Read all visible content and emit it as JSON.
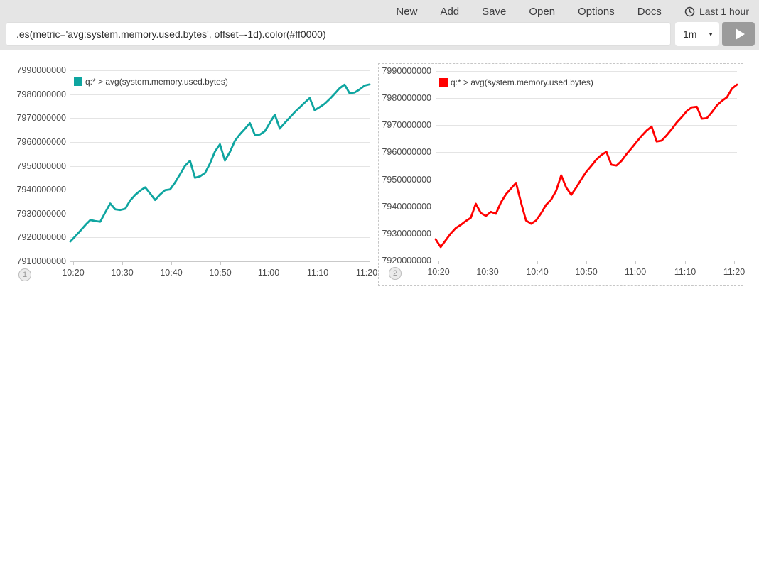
{
  "toolbar": {
    "nav": [
      "New",
      "Add",
      "Save",
      "Open",
      "Options",
      "Docs"
    ],
    "time_picker": "Last 1 hour",
    "query": ".es(metric='avg:system.memory.used.bytes', offset=-1d).color(#ff0000)",
    "interval": "1m"
  },
  "chart_data": [
    {
      "type": "line",
      "badge": "1",
      "legend": "q:* > avg(system.memory.used.bytes)",
      "color": "#0ea5a0",
      "selected": false,
      "grid": true,
      "legend_position": "top-left-inside",
      "x_ticks": [
        "10:20",
        "10:30",
        "10:40",
        "10:50",
        "11:00",
        "11:10",
        "11:20"
      ],
      "y_ticks": [
        "7990000000",
        "7980000000",
        "7970000000",
        "7960000000",
        "7950000000",
        "7940000000",
        "7930000000",
        "7920000000",
        "7910000000"
      ],
      "ylim": [
        7910000000,
        7990000000
      ],
      "values": [
        7918300000,
        7920500000,
        7922800000,
        7925200000,
        7927300000,
        7926900000,
        7926600000,
        7930500000,
        7934200000,
        7931800000,
        7931500000,
        7932000000,
        7935500000,
        7937800000,
        7939600000,
        7941000000,
        7938400000,
        7935700000,
        7938000000,
        7939800000,
        7940100000,
        7943000000,
        7946500000,
        7950000000,
        7952100000,
        7945000000,
        7945600000,
        7947000000,
        7951000000,
        7956000000,
        7959000000,
        7952200000,
        7955800000,
        7960500000,
        7963200000,
        7965500000,
        7967900000,
        7963000000,
        7963100000,
        7964500000,
        7968000000,
        7971400000,
        7965600000,
        7968000000,
        7970200000,
        7972500000,
        7974500000,
        7976500000,
        7978400000,
        7973300000,
        7974600000,
        7976000000,
        7978000000,
        7980200000,
        7982500000,
        7984000000,
        7980400000,
        7980700000,
        7982000000,
        7983600000,
        7984100000
      ]
    },
    {
      "type": "line",
      "badge": "2",
      "legend": "q:* > avg(system.memory.used.bytes)",
      "color": "#ff0000",
      "selected": true,
      "grid": true,
      "legend_position": "top-left-inside",
      "x_ticks": [
        "10:20",
        "10:30",
        "10:40",
        "10:50",
        "11:00",
        "11:10",
        "11:20"
      ],
      "y_ticks": [
        "7990000000",
        "7980000000",
        "7970000000",
        "7960000000",
        "7950000000",
        "7940000000",
        "7930000000",
        "7920000000"
      ],
      "ylim": [
        7920000000,
        7990000000
      ],
      "values": [
        7927900000,
        7925000000,
        7927500000,
        7930000000,
        7932000000,
        7933200000,
        7934600000,
        7935800000,
        7941000000,
        7937600000,
        7936500000,
        7938000000,
        7937300000,
        7941500000,
        7944500000,
        7946600000,
        7948700000,
        7941500000,
        7934800000,
        7933600000,
        7934800000,
        7937500000,
        7940600000,
        7942500000,
        7945800000,
        7951500000,
        7947000000,
        7944300000,
        7947000000,
        7950000000,
        7952800000,
        7955000000,
        7957300000,
        7959000000,
        7960200000,
        7955400000,
        7955100000,
        7956800000,
        7959300000,
        7961500000,
        7963800000,
        7966000000,
        7968000000,
        7969500000,
        7964000000,
        7964300000,
        7966300000,
        7968500000,
        7971000000,
        7973000000,
        7975200000,
        7976600000,
        7976800000,
        7972400000,
        7972600000,
        7974800000,
        7977300000,
        7979000000,
        7980300000,
        7983500000,
        7985000000
      ]
    }
  ]
}
